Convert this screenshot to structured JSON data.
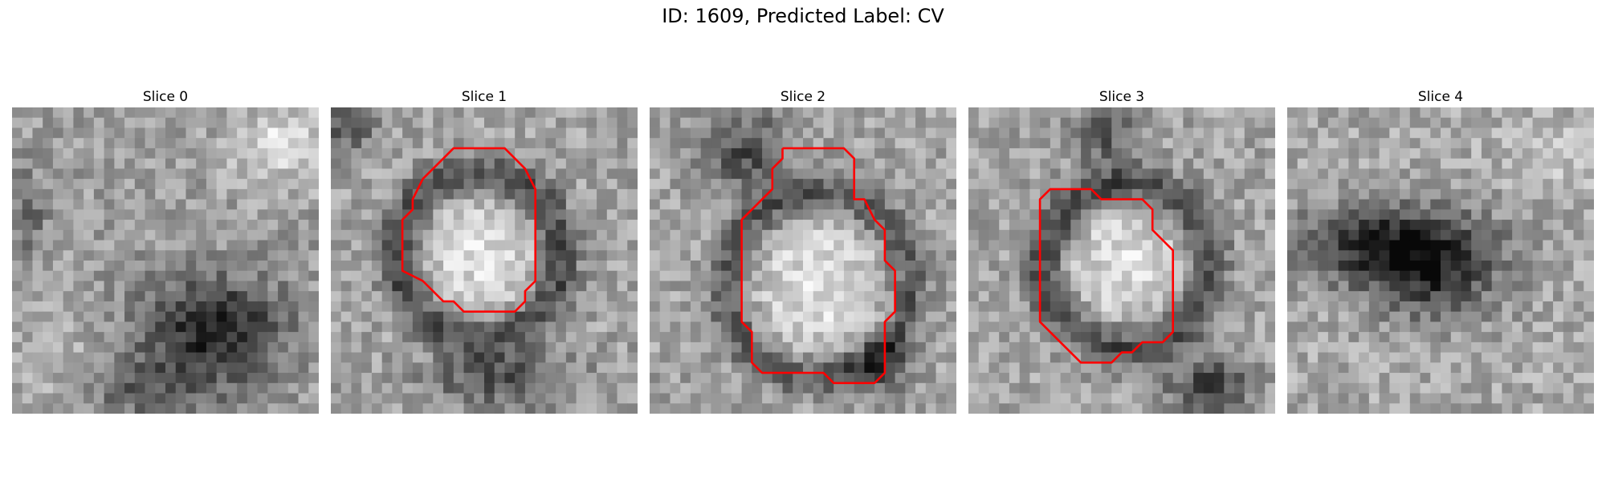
{
  "figure": {
    "title": "ID: 1609, Predicted Label: CV"
  },
  "colors": {
    "contour": "#ff0000",
    "background": "#ffffff"
  },
  "panels": [
    {
      "title": "Slice 0",
      "seed": 11,
      "theme": "slice0",
      "has_contour": false
    },
    {
      "title": "Slice 1",
      "seed": 23,
      "theme": "slice1",
      "has_contour": true
    },
    {
      "title": "Slice 2",
      "seed": 37,
      "theme": "slice2",
      "has_contour": true
    },
    {
      "title": "Slice 3",
      "seed": 51,
      "theme": "slice3",
      "has_contour": true
    },
    {
      "title": "Slice 4",
      "seed": 67,
      "theme": "slice4",
      "has_contour": false
    }
  ]
}
